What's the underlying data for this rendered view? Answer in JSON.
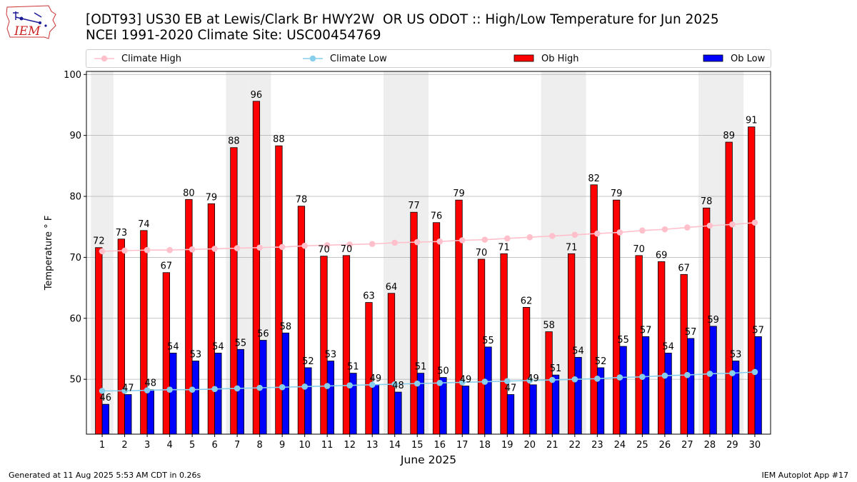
{
  "title_line1": "[ODT93] US30 EB at Lewis/Clark Br HWY2W  OR US ODOT :: High/Low Temperature for Jun 2025",
  "title_line2": "NCEI 1991-2020 Climate Site: USC00454769",
  "logo_text": "IEM",
  "footer_left": "Generated at 11 Aug 2025 5:53 AM CDT in 0.26s",
  "footer_right": "IEM Autoplot App #17",
  "legend": {
    "climate_high": "Climate High",
    "climate_low": "Climate Low",
    "ob_high": "Ob High",
    "ob_low": "Ob Low"
  },
  "colors": {
    "ob_high": "#ff0000",
    "ob_low": "#0000ff",
    "climate_high": "#ffc0cb",
    "climate_low": "#87ceeb",
    "weekend_shade": "#eeeeee",
    "grid": "#b0b0b0"
  },
  "chart_data": {
    "type": "bar",
    "xlabel": "June 2025",
    "ylabel": "Temperature ° F",
    "ylim": [
      41,
      100.5
    ],
    "yticks": [
      50,
      60,
      70,
      80,
      90,
      100
    ],
    "grid": true,
    "legend_position": "top",
    "categories": [
      1,
      2,
      3,
      4,
      5,
      6,
      7,
      8,
      9,
      10,
      11,
      12,
      13,
      14,
      15,
      16,
      17,
      18,
      19,
      20,
      21,
      22,
      23,
      24,
      25,
      26,
      27,
      28,
      29,
      30
    ],
    "shaded_weekend_days": [
      1,
      7,
      8,
      14,
      15,
      21,
      22,
      28,
      29
    ],
    "series": [
      {
        "name": "Ob High",
        "kind": "bar",
        "values": [
          71.6,
          73.0,
          74.4,
          67.5,
          79.5,
          78.8,
          88.0,
          95.6,
          88.3,
          78.4,
          70.2,
          70.3,
          62.6,
          64.1,
          77.4,
          75.7,
          79.4,
          69.7,
          70.6,
          61.8,
          57.8,
          70.6,
          81.9,
          79.4,
          70.3,
          69.3,
          67.2,
          78.1,
          88.9,
          91.4
        ],
        "labels": [
          72,
          73,
          74,
          67,
          80,
          79,
          88,
          96,
          88,
          78,
          70,
          70,
          63,
          64,
          77,
          76,
          79,
          70,
          71,
          62,
          58,
          71,
          82,
          79,
          70,
          69,
          67,
          78,
          89,
          91
        ]
      },
      {
        "name": "Ob Low",
        "kind": "bar",
        "values": [
          45.9,
          47.5,
          48.3,
          54.3,
          53.0,
          54.3,
          54.9,
          56.4,
          57.6,
          51.9,
          53.0,
          51.0,
          49.1,
          47.9,
          51.0,
          50.3,
          48.9,
          55.3,
          47.5,
          49.1,
          50.7,
          53.6,
          51.9,
          55.4,
          57.0,
          54.3,
          56.7,
          58.7,
          53.0,
          57.0
        ],
        "labels": [
          46,
          47,
          48,
          54,
          53,
          54,
          55,
          56,
          58,
          52,
          53,
          51,
          49,
          48,
          51,
          50,
          49,
          55,
          47,
          49,
          51,
          54,
          52,
          55,
          57,
          54,
          57,
          59,
          53,
          57
        ]
      },
      {
        "name": "Climate High",
        "kind": "line",
        "values": [
          71.0,
          71.1,
          71.2,
          71.2,
          71.3,
          71.4,
          71.5,
          71.6,
          71.7,
          71.9,
          72.0,
          72.1,
          72.2,
          72.4,
          72.5,
          72.6,
          72.8,
          72.9,
          73.1,
          73.3,
          73.5,
          73.7,
          73.9,
          74.1,
          74.4,
          74.6,
          74.9,
          75.2,
          75.4,
          75.7
        ]
      },
      {
        "name": "Climate Low",
        "kind": "line",
        "values": [
          48.1,
          48.1,
          48.2,
          48.3,
          48.3,
          48.4,
          48.5,
          48.6,
          48.7,
          48.8,
          48.9,
          49.0,
          49.1,
          49.2,
          49.3,
          49.4,
          49.5,
          49.6,
          49.7,
          49.8,
          49.9,
          50.0,
          50.1,
          50.3,
          50.4,
          50.6,
          50.7,
          50.9,
          51.0,
          51.2
        ]
      }
    ]
  }
}
